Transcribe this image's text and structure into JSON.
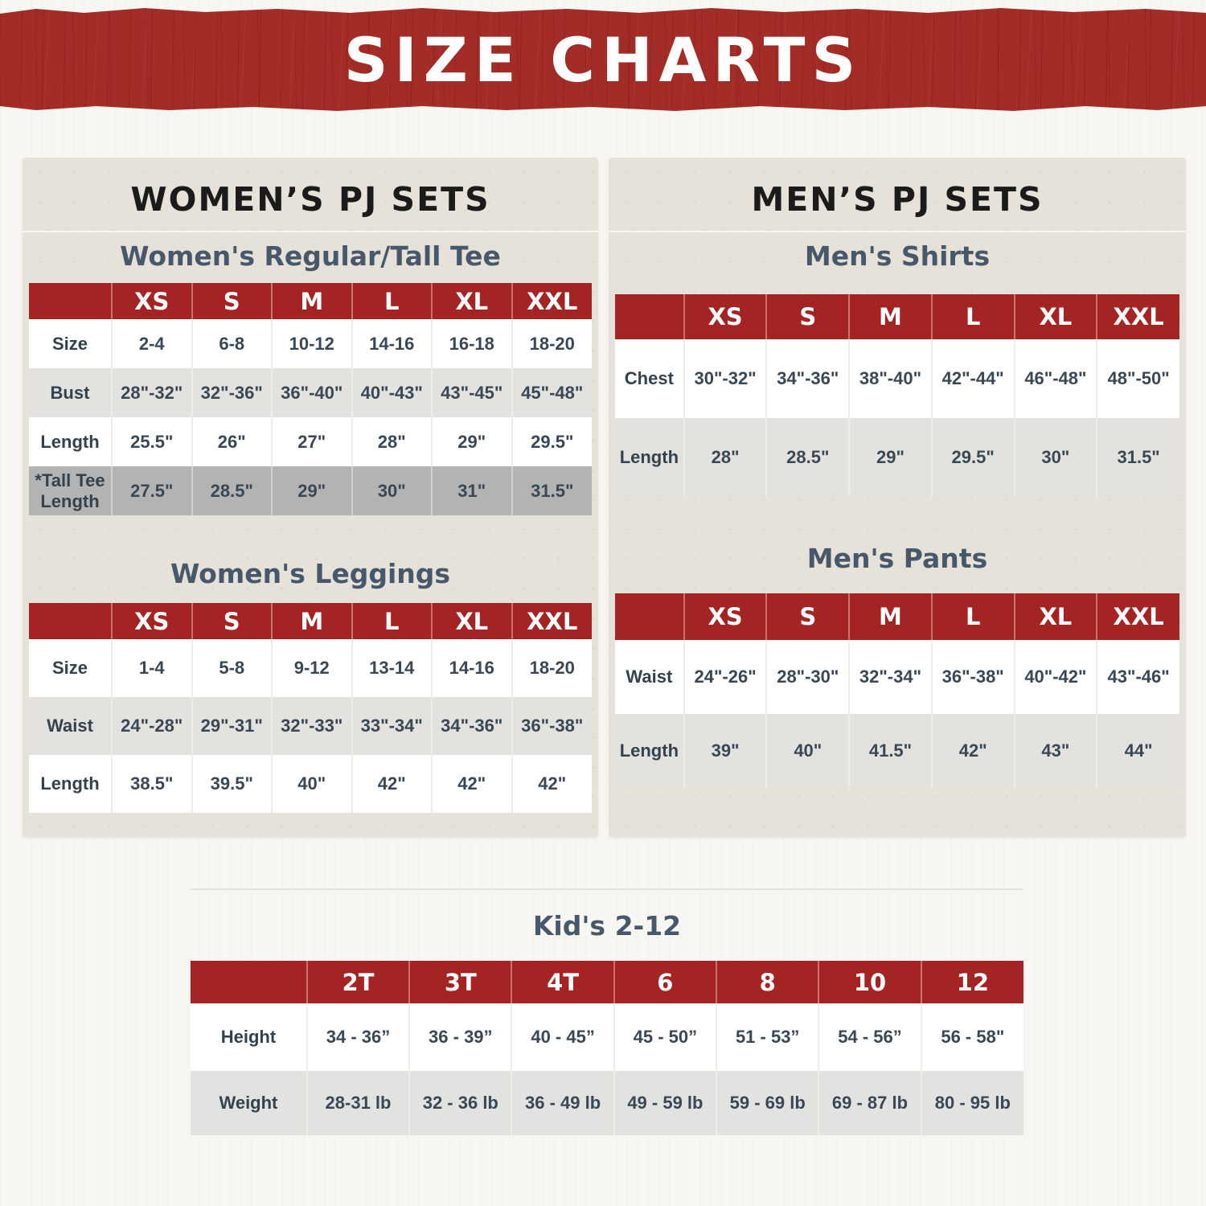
{
  "banner": {
    "title": "SIZE CHARTS"
  },
  "colors": {
    "banner_red": "#a42c26",
    "header_red": "#a32422",
    "panel_beige": "#e6e2d9",
    "row_white": "#ffffff",
    "row_gray": "#e3e2df",
    "row_dark_gray": "#b3b3b3",
    "heading_black": "#1b1b1b",
    "heading_slate": "#47586a",
    "cell_text": "#3a4754"
  },
  "panels": {
    "women": {
      "title": "WOMEN’S PJ SETS",
      "tables": [
        {
          "subtitle": "Women's Regular/Tall Tee",
          "columns": [
            "XS",
            "S",
            "M",
            "L",
            "XL",
            "XXL"
          ],
          "rows": [
            {
              "label": "Size",
              "style": "white",
              "values": [
                "2-4",
                "6-8",
                "10-12",
                "14-16",
                "16-18",
                "18-20"
              ]
            },
            {
              "label": "Bust",
              "style": "gray",
              "values": [
                "28\"-32\"",
                "32\"-36\"",
                "36\"-40\"",
                "40\"-43\"",
                "43\"-45\"",
                "45\"-48\""
              ]
            },
            {
              "label": "Length",
              "style": "white",
              "values": [
                "25.5\"",
                "26\"",
                "27\"",
                "28\"",
                "29\"",
                "29.5\""
              ]
            },
            {
              "label": "*Tall Tee Length",
              "style": "darkgray",
              "values": [
                "27.5\"",
                "28.5\"",
                "29\"",
                "30\"",
                "31\"",
                "31.5\""
              ]
            }
          ]
        },
        {
          "subtitle": "Women's Leggings",
          "columns": [
            "XS",
            "S",
            "M",
            "L",
            "XL",
            "XXL"
          ],
          "rows": [
            {
              "label": "Size",
              "style": "white",
              "values": [
                "1-4",
                "5-8",
                "9-12",
                "13-14",
                "14-16",
                "18-20"
              ]
            },
            {
              "label": "Waist",
              "style": "gray",
              "values": [
                "24\"-28\"",
                "29\"-31\"",
                "32\"-33\"",
                "33\"-34\"",
                "34\"-36\"",
                "36\"-38\""
              ]
            },
            {
              "label": "Length",
              "style": "white",
              "values": [
                "38.5\"",
                "39.5\"",
                "40\"",
                "42\"",
                "42\"",
                "42\""
              ]
            }
          ]
        }
      ]
    },
    "men": {
      "title": "MEN’S PJ SETS",
      "tables": [
        {
          "subtitle": "Men's Shirts",
          "columns": [
            "XS",
            "S",
            "M",
            "L",
            "XL",
            "XXL"
          ],
          "rows": [
            {
              "label": "Chest",
              "style": "white",
              "values": [
                "30\"-32\"",
                "34\"-36\"",
                "38\"-40\"",
                "42\"-44\"",
                "46\"-48\"",
                "48\"-50\""
              ]
            },
            {
              "label": "Length",
              "style": "gray",
              "values": [
                "28\"",
                "28.5\"",
                "29\"",
                "29.5\"",
                "30\"",
                "31.5\""
              ]
            }
          ]
        },
        {
          "subtitle": "Men's Pants",
          "columns": [
            "XS",
            "S",
            "M",
            "L",
            "XL",
            "XXL"
          ],
          "rows": [
            {
              "label": "Waist",
              "style": "white",
              "values": [
                "24\"-26\"",
                "28\"-30\"",
                "32\"-34\"",
                "36\"-38\"",
                "40\"-42\"",
                "43\"-46\""
              ]
            },
            {
              "label": "Length",
              "style": "gray",
              "values": [
                "39\"",
                "40\"",
                "41.5\"",
                "42\"",
                "43\"",
                "44\""
              ]
            }
          ]
        }
      ]
    },
    "kids": {
      "title": "Kid's 2-12",
      "table": {
        "columns": [
          "2T",
          "3T",
          "4T",
          "6",
          "8",
          "10",
          "12"
        ],
        "rows": [
          {
            "label": "Height",
            "style": "white",
            "values": [
              "34 - 36”",
              "36 - 39”",
              "40 - 45”",
              "45 - 50”",
              "51 - 53”",
              "54 - 56”",
              "56 - 58\""
            ]
          },
          {
            "label": "Weight",
            "style": "gray",
            "values": [
              "28-31 lb",
              "32 - 36 lb",
              "36 - 49 lb",
              "49 - 59 lb",
              "59 - 69 lb",
              "69 - 87 lb",
              "80 - 95 lb"
            ]
          }
        ]
      }
    }
  }
}
